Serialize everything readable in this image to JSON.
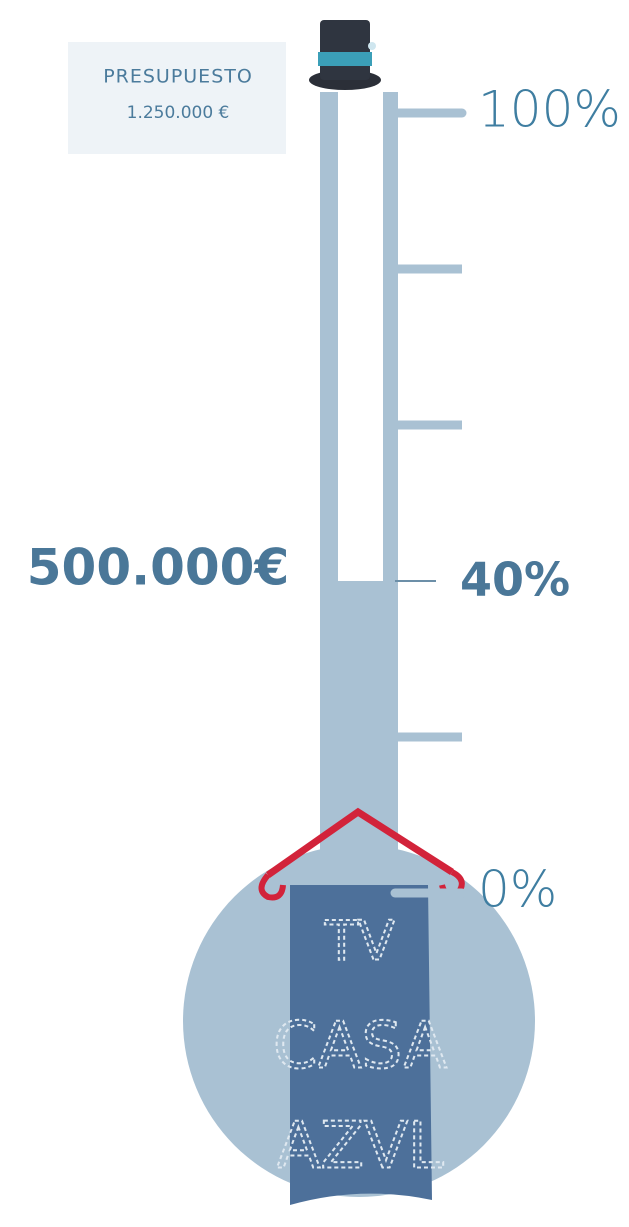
{
  "chart_data": {
    "type": "thermometer",
    "budget_label": "PRESUPUESTO",
    "budget": "1.250.000 €",
    "amount_label": "500.000€",
    "value": 40,
    "value_label": "40%",
    "ylim": [
      0,
      100
    ],
    "yticks": [
      {
        "value": 0,
        "label": "0%"
      },
      {
        "value": 100,
        "label": "100%"
      }
    ],
    "minor_yticks": [
      20,
      60,
      80
    ],
    "color": "#a9c1d3",
    "logo": [
      "TV",
      "CASA",
      "AZVL"
    ]
  }
}
